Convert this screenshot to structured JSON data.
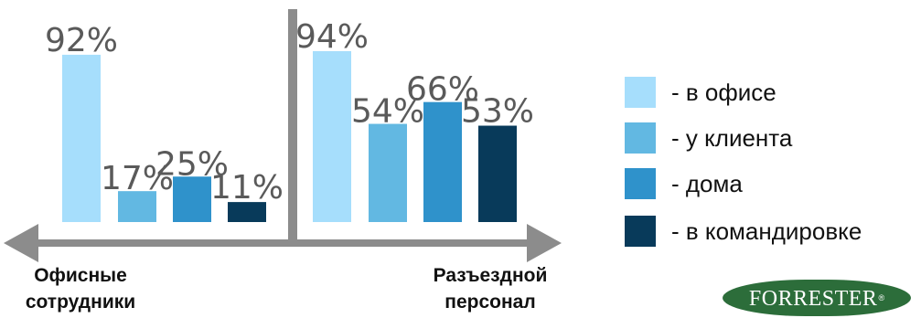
{
  "chart_data": {
    "type": "bar",
    "groups": [
      {
        "label_line1": "Офисные",
        "label_line2": "сотрудники",
        "values": [
          92,
          17,
          25,
          11
        ],
        "value_labels": [
          "92%",
          "17%",
          "25%",
          "11%"
        ]
      },
      {
        "label_line1": "Разъездной",
        "label_line2": "персонал",
        "values": [
          94,
          54,
          66,
          53
        ],
        "value_labels": [
          "94%",
          "54%",
          "66%",
          "53%"
        ]
      }
    ],
    "series": [
      {
        "name": "- в офисе",
        "color": "#a6defc"
      },
      {
        "name": "- у клиента",
        "color": "#62b8e2"
      },
      {
        "name": "- дома",
        "color": "#2f92cb"
      },
      {
        "name": "- в командировке",
        "color": "#083a5a"
      }
    ],
    "ylim": [
      0,
      100
    ],
    "legend_position": "right"
  },
  "logo": {
    "text": "FORRESTER",
    "mark": "®"
  }
}
